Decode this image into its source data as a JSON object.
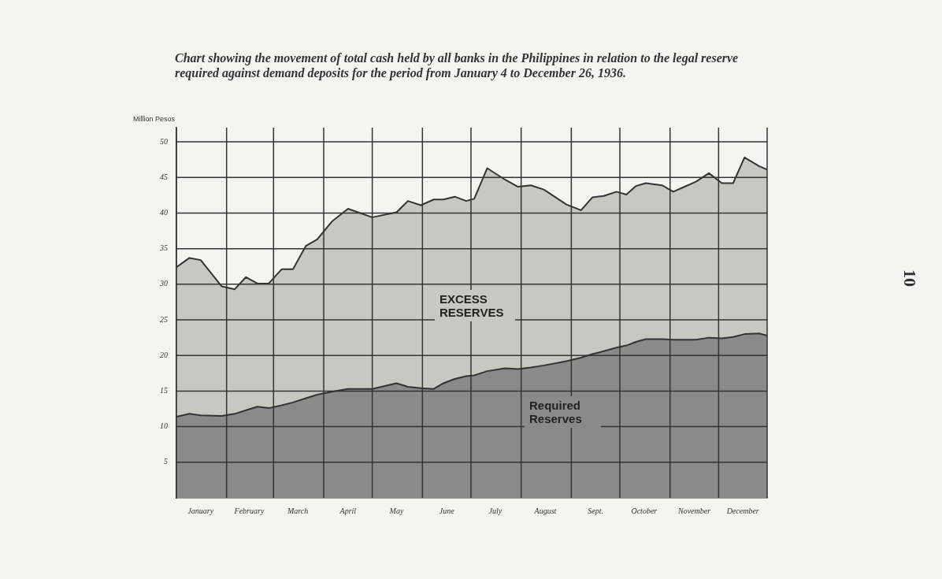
{
  "chart_data": {
    "type": "area",
    "stacked": true,
    "title": "Chart showing the movement of total cash held by all banks in the Philippines in relation to the legal reserve required against demand deposits for the period from January 4 to December 26, 1936.",
    "ylabel": "Million Pesos",
    "xlim": [
      "1936-01-01",
      "1936-12-31"
    ],
    "xticks": [
      {
        "value": "1936-01-01",
        "label": null
      },
      {
        "value": "1936-01-16",
        "label": "January"
      },
      {
        "value": "1936-02-01",
        "label": null
      },
      {
        "value": "1936-02-15",
        "label": "February"
      },
      {
        "value": "1936-03-01",
        "label": null
      },
      {
        "value": "1936-03-16",
        "label": "March"
      },
      {
        "value": "1936-04-01",
        "label": null
      },
      {
        "value": "1936-04-16",
        "label": "April"
      },
      {
        "value": "1936-05-01",
        "label": null
      },
      {
        "value": "1936-05-16",
        "label": "May"
      },
      {
        "value": "1936-06-01",
        "label": null
      },
      {
        "value": "1936-06-16",
        "label": "June"
      },
      {
        "value": "1936-07-01",
        "label": null
      },
      {
        "value": "1936-07-16",
        "label": "July"
      },
      {
        "value": "1936-08-01",
        "label": null
      },
      {
        "value": "1936-08-16",
        "label": "August"
      },
      {
        "value": "1936-09-01",
        "label": null
      },
      {
        "value": "1936-09-16",
        "label": "Sept."
      },
      {
        "value": "1936-10-01",
        "label": null
      },
      {
        "value": "1936-10-16",
        "label": "October"
      },
      {
        "value": "1936-11-01",
        "label": null
      },
      {
        "value": "1936-11-16",
        "label": "November"
      },
      {
        "value": "1936-12-01",
        "label": null
      },
      {
        "value": "1936-12-16",
        "label": "December"
      },
      {
        "value": "1936-12-31",
        "label": null
      }
    ],
    "ylim": [
      0,
      52
    ],
    "yticks": [
      5,
      10,
      15,
      20,
      25,
      30,
      35,
      40,
      45,
      50
    ],
    "grid": true,
    "legend": false,
    "marker": "none",
    "line_style": "solid",
    "x": [
      "1936-01-01",
      "1936-01-09",
      "1936-01-16",
      "1936-01-29",
      "1936-02-06",
      "1936-02-13",
      "1936-02-20",
      "1936-02-27",
      "1936-03-06",
      "1936-03-13",
      "1936-03-21",
      "1936-03-28",
      "1936-04-06",
      "1936-04-16",
      "1936-05-01",
      "1936-05-16",
      "1936-05-23",
      "1936-05-31",
      "1936-06-08",
      "1936-06-14",
      "1936-06-21",
      "1936-06-28",
      "1936-07-03",
      "1936-07-11",
      "1936-07-22",
      "1936-07-30",
      "1936-08-07",
      "1936-08-15",
      "1936-08-29",
      "1936-09-07",
      "1936-09-14",
      "1936-09-21",
      "1936-09-29",
      "1936-10-05",
      "1936-10-11",
      "1936-10-17",
      "1936-10-27",
      "1936-11-03",
      "1936-11-10",
      "1936-11-17",
      "1936-11-25",
      "1936-12-03",
      "1936-12-10",
      "1936-12-17",
      "1936-12-26",
      "1936-12-31"
    ],
    "series": [
      {
        "name": "Required Reserves",
        "color": "#8a8a8a",
        "values": [
          11.4,
          11.8,
          11.6,
          11.5,
          11.8,
          12.3,
          12.8,
          12.6,
          13.0,
          13.4,
          14.0,
          14.5,
          14.9,
          15.3,
          15.3,
          16.1,
          15.6,
          15.4,
          15.3,
          16.1,
          16.7,
          17.1,
          17.2,
          17.8,
          18.2,
          18.1,
          18.3,
          18.6,
          19.2,
          19.7,
          20.2,
          20.6,
          21.1,
          21.4,
          21.9,
          22.3,
          22.3,
          22.2,
          22.2,
          22.2,
          22.5,
          22.4,
          22.6,
          23.0,
          23.1,
          22.8
        ]
      },
      {
        "name": "EXCESS RESERVES",
        "color": "#c8c8c3",
        "values": [
          21.0,
          21.9,
          21.8,
          18.2,
          17.5,
          18.7,
          17.3,
          17.5,
          19.1,
          18.7,
          21.4,
          21.8,
          23.9,
          25.3,
          24.1,
          24.0,
          26.1,
          25.7,
          26.6,
          25.8,
          25.6,
          24.6,
          24.8,
          28.5,
          26.5,
          25.6,
          25.6,
          24.7,
          22.0,
          20.7,
          22.0,
          21.8,
          21.9,
          21.2,
          21.9,
          21.9,
          21.6,
          20.8,
          21.5,
          22.2,
          23.1,
          21.8,
          21.6,
          24.8,
          23.5,
          23.3
        ]
      }
    ],
    "annotations": [
      "10"
    ]
  }
}
